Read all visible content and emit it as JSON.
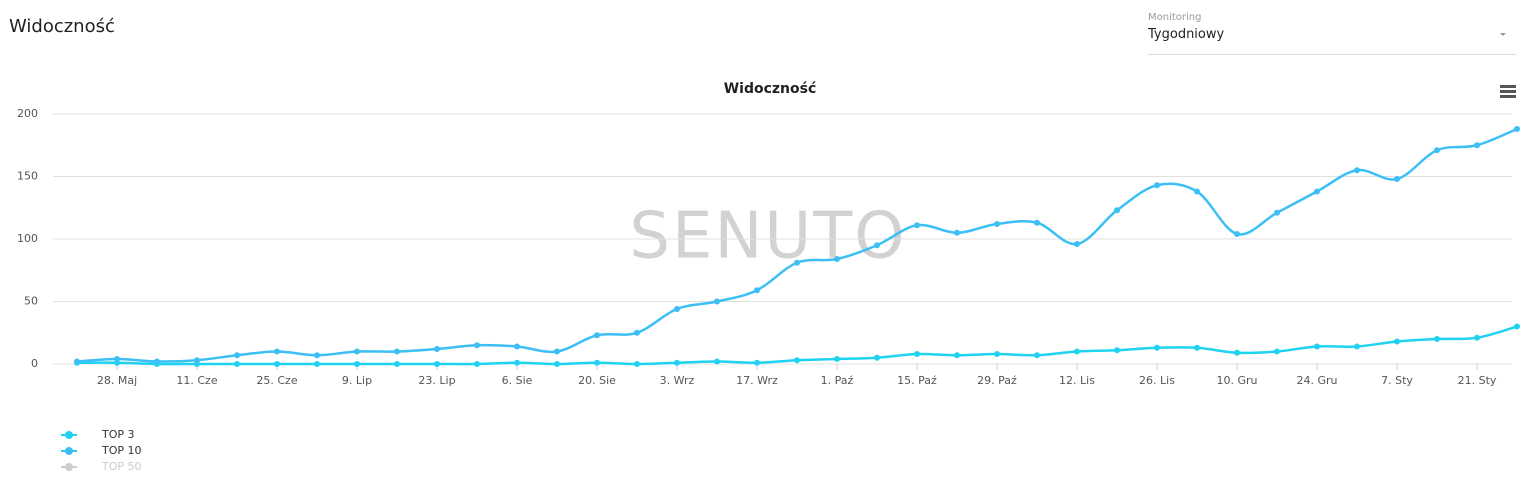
{
  "header": {
    "title": "Widoczność",
    "select_label": "Monitoring",
    "select_value": "Tygodniowy"
  },
  "watermark": "SENUTO",
  "chart_data": {
    "type": "line",
    "title": "Widoczność",
    "categories": [
      null,
      "28. Maj",
      null,
      "11. Cze",
      null,
      "25. Cze",
      null,
      "9. Lip",
      null,
      "23. Lip",
      null,
      "6. Sie",
      null,
      "20. Sie",
      null,
      "3. Wrz",
      null,
      "17. Wrz",
      null,
      "1. Paź",
      null,
      "15. Paź",
      null,
      "29. Paź",
      null,
      "12. Lis",
      null,
      "26. Lis",
      null,
      "10. Gru",
      null,
      "24. Gru",
      null,
      "7. Sty",
      null,
      "21. Sty",
      null
    ],
    "series": [
      {
        "name": "TOP 3",
        "color": "#1fd3f0",
        "values": [
          1,
          1,
          0,
          0,
          0,
          0,
          0,
          0,
          0,
          0,
          0,
          1,
          0,
          1,
          0,
          1,
          2,
          1,
          3,
          4,
          5,
          8,
          7,
          8,
          7,
          10,
          11,
          13,
          13,
          9,
          10,
          14,
          14,
          18,
          20,
          21,
          30
        ]
      },
      {
        "name": "TOP 10",
        "color": "#3cbff5",
        "values": [
          2,
          4,
          2,
          3,
          7,
          10,
          7,
          10,
          10,
          12,
          15,
          14,
          10,
          23,
          25,
          44,
          50,
          59,
          81,
          84,
          95,
          111,
          105,
          112,
          113,
          96,
          123,
          143,
          138,
          104,
          121,
          138,
          155,
          148,
          171,
          175,
          188
        ]
      }
    ],
    "hidden_series": [
      {
        "name": "TOP 50",
        "color": "#cccccc"
      }
    ],
    "ylim": [
      0,
      200
    ],
    "yticks": [
      0,
      50,
      100,
      150,
      200
    ],
    "grid": true,
    "legend": "bottom-left"
  }
}
